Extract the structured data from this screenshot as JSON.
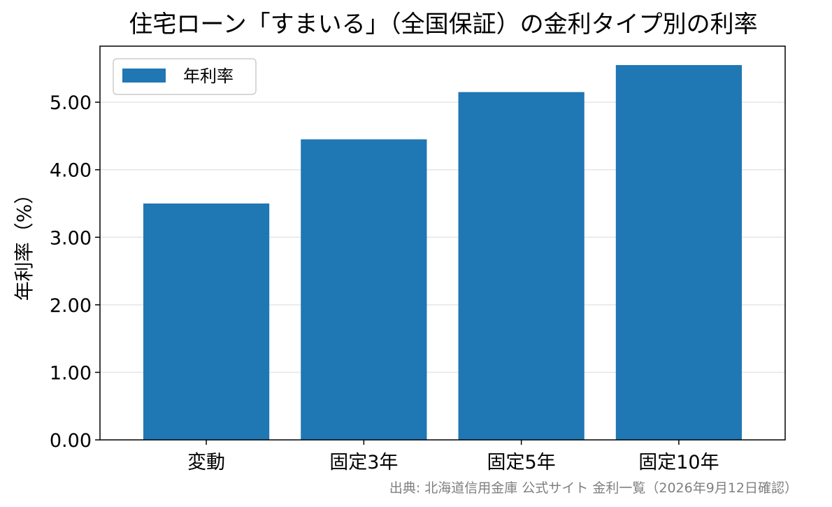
{
  "chart_data": {
    "type": "bar",
    "title": "住宅ローン「すまいる」（全国保証）の金利タイプ別の利率",
    "xlabel": "",
    "ylabel": "年利率（%）",
    "categories": [
      "変動",
      "固定3年",
      "固定5年",
      "固定10年"
    ],
    "series": [
      {
        "name": "年利率",
        "values": [
          3.5,
          4.45,
          5.15,
          5.55
        ]
      }
    ],
    "ylim": [
      0,
      5.83
    ],
    "yticks": [
      0,
      1,
      2,
      3,
      4,
      5
    ],
    "ytick_labels": [
      "0.00",
      "1.00",
      "2.00",
      "3.00",
      "4.00",
      "5.00"
    ],
    "grid": "y",
    "legend_position": "top-left",
    "bar_color": "#1f77b4",
    "grid_color": "#e6e6e6",
    "source": "出典: 北海道信用金庫 公式サイト 金利一覧（2026年9月12日確認）"
  }
}
